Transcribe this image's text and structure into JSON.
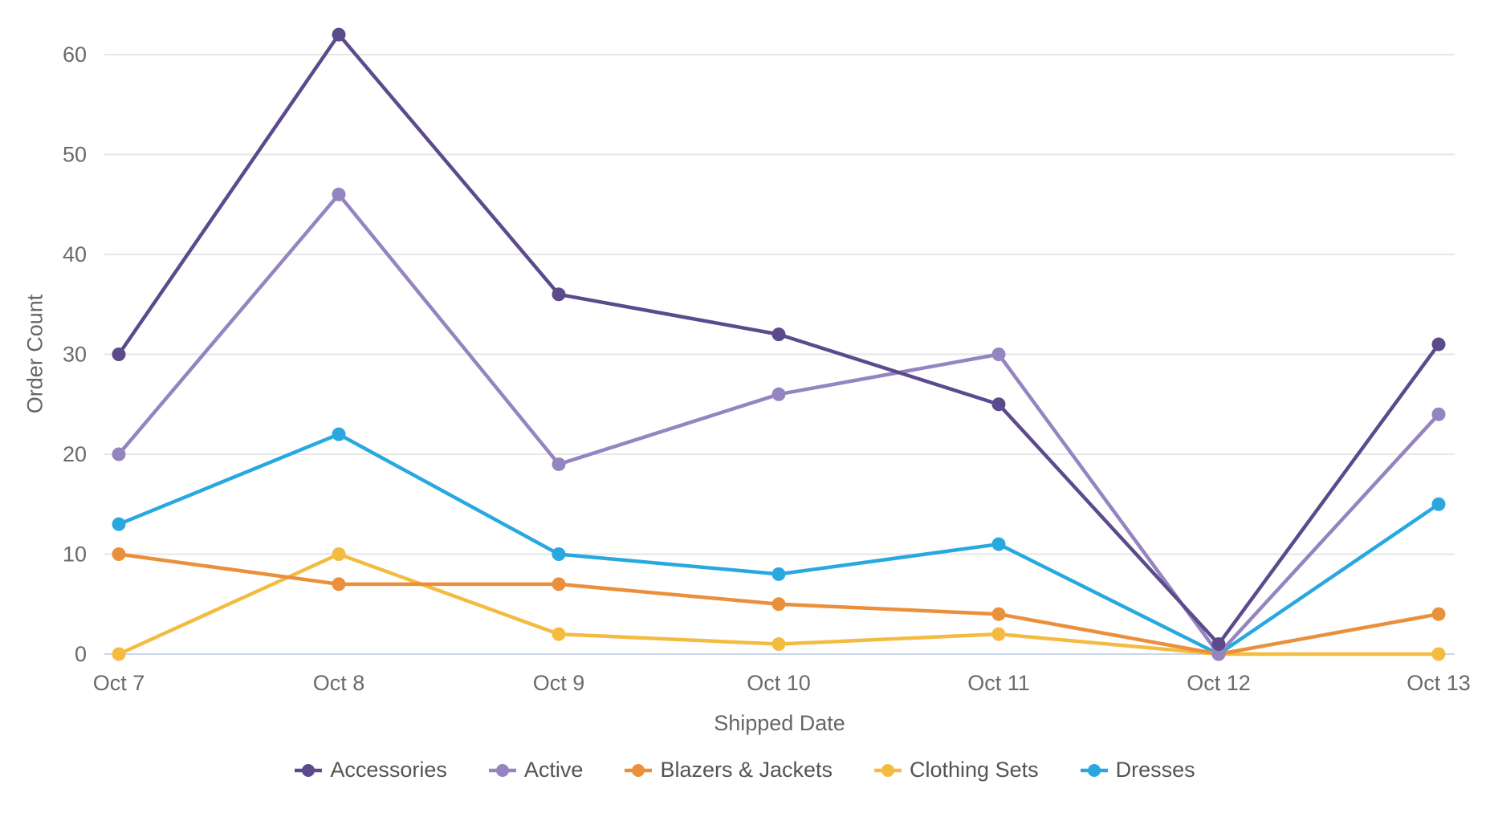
{
  "chart_data": {
    "type": "line",
    "title": "",
    "categories": [
      "Oct 7",
      "Oct 8",
      "Oct 9",
      "Oct 10",
      "Oct 11",
      "Oct 12",
      "Oct 13"
    ],
    "xlabel": "Shipped Date",
    "ylabel": "Order Count",
    "ylim": [
      0,
      65
    ],
    "yticks": [
      0,
      10,
      20,
      30,
      40,
      50,
      60
    ],
    "grid": true,
    "legend_position": "bottom",
    "marker": "circle",
    "series": [
      {
        "name": "Accessories",
        "color": "#5C4B8C",
        "values": [
          30,
          62,
          36,
          32,
          25,
          1,
          31
        ]
      },
      {
        "name": "Active",
        "color": "#9484C0",
        "values": [
          20,
          46,
          19,
          26,
          30,
          0,
          24
        ]
      },
      {
        "name": "Blazers & Jackets",
        "color": "#EA8F3C",
        "values": [
          10,
          7,
          7,
          5,
          4,
          0,
          4
        ]
      },
      {
        "name": "Clothing Sets",
        "color": "#F4BB41",
        "values": [
          0,
          10,
          2,
          1,
          2,
          0,
          0
        ]
      },
      {
        "name": "Dresses",
        "color": "#29A8E0",
        "values": [
          13,
          22,
          10,
          8,
          11,
          0,
          15
        ]
      }
    ]
  },
  "colors": {
    "background": "#ffffff",
    "gridline": "#e6e6e6",
    "zero_axis_line": "#ccd6eb",
    "tick_label": "#6a6a6a",
    "axis_title": "#666666",
    "legend_label": "#545454"
  }
}
